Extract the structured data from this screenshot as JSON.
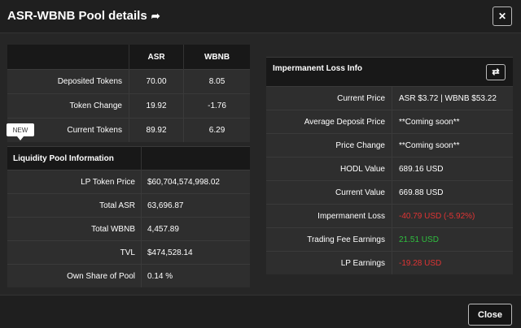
{
  "modal": {
    "title": "ASR-WBNB Pool details",
    "close_x": "✕",
    "close_label": "Close"
  },
  "tokens": {
    "headers": [
      "",
      "ASR",
      "WBNB"
    ],
    "rows": [
      {
        "label": "Deposited Tokens",
        "asr": "70.00",
        "wbnb": "8.05"
      },
      {
        "label": "Token Change",
        "asr": "19.92",
        "wbnb": "-1.76"
      },
      {
        "label": "Current Tokens",
        "asr": "89.92",
        "wbnb": "6.29"
      }
    ]
  },
  "badge": "NEW",
  "liquidity": {
    "title": "Liquidity Pool Information",
    "rows": [
      {
        "label": "LP Token Price",
        "value": "$60,704,574,998.02"
      },
      {
        "label": "Total ASR",
        "value": "63,696.87"
      },
      {
        "label": "Total WBNB",
        "value": "4,457.89"
      },
      {
        "label": "TVL",
        "value": "$474,528.14"
      },
      {
        "label": "Own Share of Pool",
        "value": "0.14 %"
      }
    ]
  },
  "impermanent": {
    "title": "Impermanent Loss Info",
    "swap_icon": "⇄",
    "rows": [
      {
        "label": "Current Price",
        "value": "ASR $3.72 | WBNB $53.22"
      },
      {
        "label": "Average Deposit Price",
        "value": "**Coming soon**"
      },
      {
        "label": "Price Change",
        "value": "**Coming soon**"
      },
      {
        "label": "HODL Value",
        "value": "689.16 USD"
      },
      {
        "label": "Current Value",
        "value": "669.88 USD"
      },
      {
        "label": "Impermanent Loss",
        "value": "-40.79 USD (-5.92%)"
      },
      {
        "label": "Trading Fee Earnings",
        "value": "21.51 USD"
      },
      {
        "label": "LP Earnings",
        "value": "-19.28 USD"
      }
    ]
  },
  "colors": {
    "negative": "#e03434",
    "positive": "#2fbf3f",
    "background": "#262626"
  }
}
